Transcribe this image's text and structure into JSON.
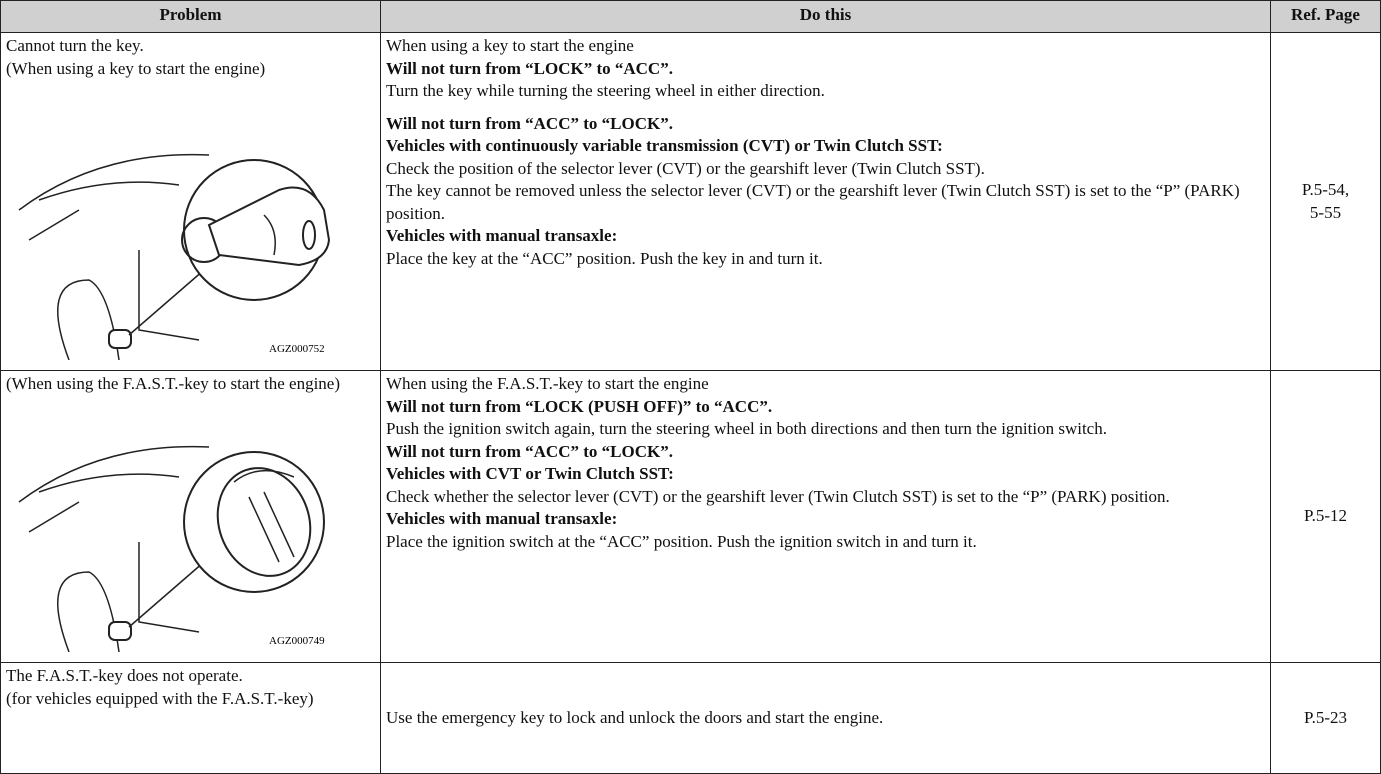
{
  "table": {
    "header": [
      "Problem",
      "Do this",
      "Ref. Page"
    ],
    "rows": [
      {
        "problem": [
          "Cannot turn the key.",
          "(When using a key to start the engine)"
        ],
        "figure_caption": "AGZ000752",
        "actions": [
          {
            "text": "When using a key to start the engine"
          },
          {
            "text": "Will not turn from “LOCK” to “ACC”.",
            "bold": true
          },
          {
            "text": "Turn the key while turning the steering wheel in either direction."
          },
          {
            "text": "Will not turn from “ACC” to “LOCK”.",
            "bold": true,
            "spaced": true
          },
          {
            "text": "Vehicles with continuously variable transmission (CVT) or Twin Clutch SST:",
            "bold": true
          },
          {
            "text": "Check the position of the selector lever (CVT) or the gearshift lever (Twin Clutch SST)."
          },
          {
            "text": "The key cannot be removed unless the selector lever (CVT) or the gearshift lever (Twin Clutch SST) is set to the “P” (PARK) position."
          },
          {
            "text": "Vehicles with manual transaxle:",
            "bold": true
          },
          {
            "text": "Place the key at the “ACC” position. Push the key in and turn it."
          }
        ],
        "ref": [
          "P.5-54,",
          "5-55"
        ]
      },
      {
        "problem": [
          "(When using the F.A.S.T.-key to start the engine)"
        ],
        "figure_caption": "AGZ000749",
        "actions": [
          {
            "text": "When using the F.A.S.T.-key to start the engine"
          },
          {
            "text": "Will not turn from “LOCK (PUSH OFF)” to “ACC”.",
            "bold": true
          },
          {
            "text": "Push the ignition switch again, turn the steering wheel in both directions and then turn the ignition switch."
          },
          {
            "text": "Will not turn from “ACC” to “LOCK”.",
            "bold": true
          },
          {
            "text": "Vehicles with CVT or Twin Clutch SST:",
            "bold": true
          },
          {
            "text": "Check whether the selector lever (CVT) or the gearshift lever (Twin Clutch SST) is set to the “P” (PARK) position."
          },
          {
            "text": "Vehicles with manual transaxle:",
            "bold": true
          },
          {
            "text": "Place the ignition switch at the “ACC” position. Push the ignition switch in and turn it."
          }
        ],
        "ref": [
          "P.5-12"
        ]
      },
      {
        "problem": [
          "The F.A.S.T.-key does not operate.",
          "(for vehicles equipped with the F.A.S.T.-key)"
        ],
        "actions": [
          {
            "text": "Use the emergency key to lock and unlock the doors and start the engine."
          }
        ],
        "ref": [
          "P.5-23"
        ]
      }
    ]
  }
}
